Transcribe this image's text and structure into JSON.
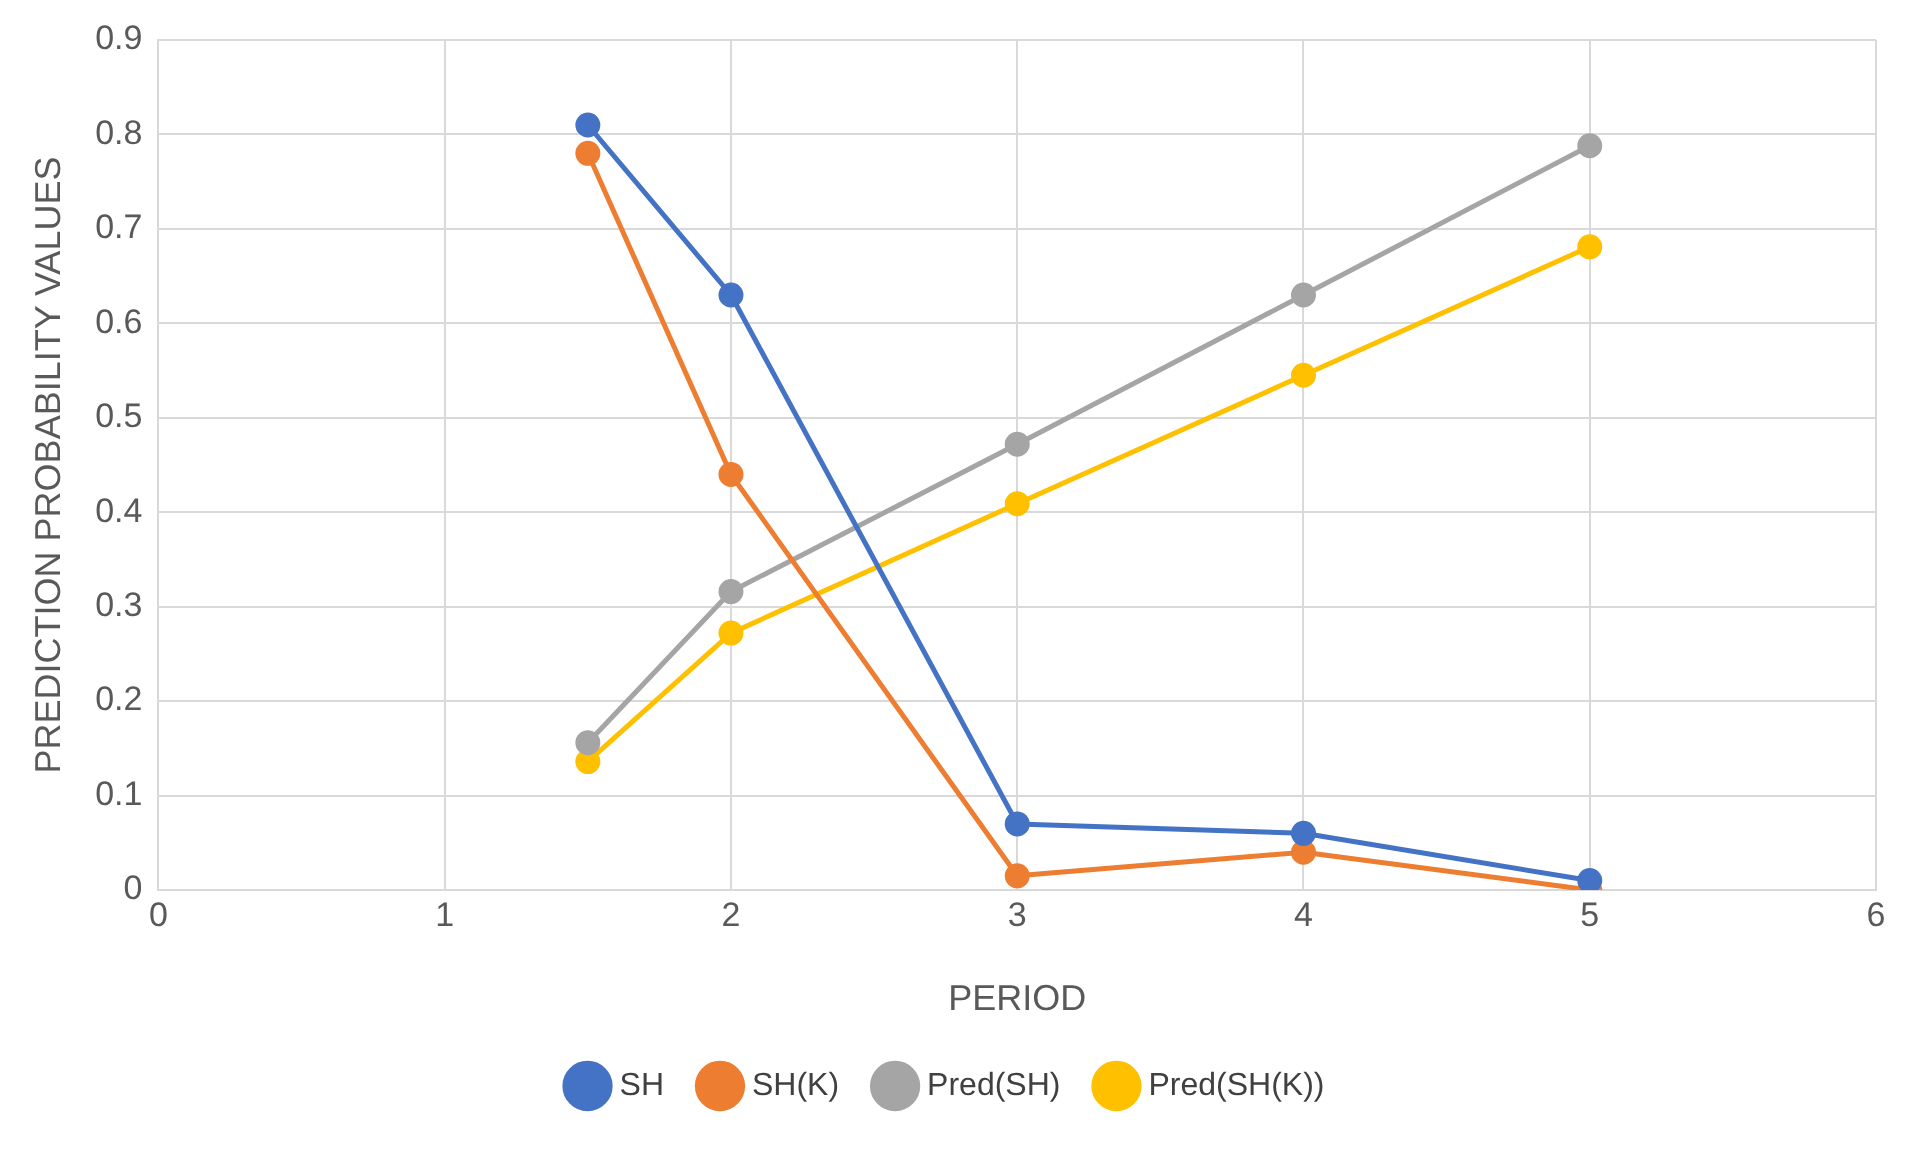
{
  "chart_data": {
    "type": "line",
    "xlabel": "PERIOD",
    "ylabel": "PREDICTION PROBABILITY VALUES",
    "x": [
      1.5,
      2,
      3,
      4,
      5
    ],
    "series": [
      {
        "name": "SH",
        "color": "#4472c4",
        "values": [
          0.81,
          0.63,
          0.07,
          0.06,
          0.01
        ]
      },
      {
        "name": "SH(K)",
        "color": "#ed7d31",
        "values": [
          0.78,
          0.44,
          0.015,
          0.04,
          0
        ]
      },
      {
        "name": "Pred(SH)",
        "color": "#a5a5a5",
        "values": [
          0.156,
          0.316,
          0.472,
          0.63,
          0.788
        ]
      },
      {
        "name": "Pred(SH(K))",
        "color": "#ffc000",
        "values": [
          0.136,
          0.272,
          0.409,
          0.545,
          0.681
        ]
      }
    ],
    "xlim": [
      0,
      6
    ],
    "xticks": [
      0,
      1,
      2,
      3,
      4,
      5,
      6
    ],
    "ylim": [
      0,
      0.9
    ],
    "yticks": [
      0,
      0.1,
      0.2,
      0.3,
      0.4,
      0.5,
      0.6,
      0.7,
      0.8,
      0.9
    ],
    "grid": true,
    "legend": "bottom",
    "marker": "circle",
    "line_style": "solid"
  }
}
